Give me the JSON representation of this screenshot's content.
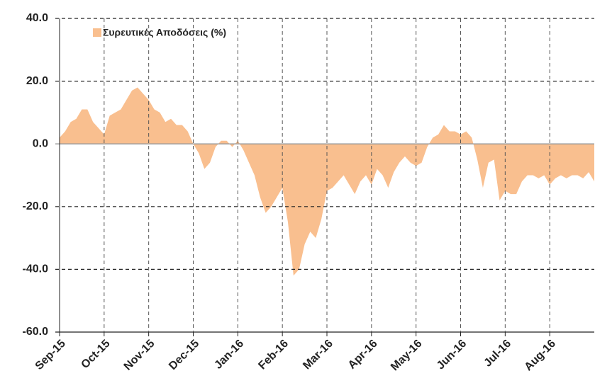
{
  "chart_data": {
    "type": "area",
    "series": [
      {
        "name": "Συρευτικές Αποδόσεις (%)",
        "color": "#f9bf8f",
        "values": [
          2,
          4,
          7,
          8,
          11,
          11,
          7,
          5,
          3,
          9,
          10,
          11,
          14,
          17,
          18,
          16,
          14,
          11,
          10,
          7,
          8,
          6,
          6,
          4,
          0,
          -3,
          -8,
          -6,
          -1,
          1,
          1,
          -1,
          1,
          -2,
          -6,
          -10,
          -17,
          -22,
          -20,
          -17,
          -14,
          -25,
          -42,
          -40,
          -32,
          -28,
          -30,
          -24,
          -15,
          -14,
          -12,
          -10,
          -13,
          -16,
          -12,
          -10,
          -13,
          -8,
          -10,
          -14,
          -9,
          -6,
          -4,
          -6,
          -7,
          -6,
          -1,
          2,
          3,
          6,
          4,
          4,
          3,
          4,
          2,
          -5,
          -14,
          -6,
          -5,
          -18,
          -15,
          -16,
          -16,
          -12,
          -10,
          -10,
          -11,
          -10,
          -13,
          -11,
          -10,
          -11,
          -10,
          -10,
          -11,
          -9,
          -12
        ]
      }
    ],
    "categories": [
      "Sep-15",
      null,
      null,
      null,
      null,
      null,
      null,
      null,
      "Oct-15",
      null,
      null,
      null,
      null,
      null,
      null,
      null,
      "Nov-15",
      null,
      null,
      null,
      null,
      null,
      null,
      null,
      "Dec-15",
      null,
      null,
      null,
      null,
      null,
      null,
      null,
      "Jan-16",
      null,
      null,
      null,
      null,
      null,
      null,
      null,
      "Feb-16",
      null,
      null,
      null,
      null,
      null,
      null,
      null,
      "Mar-16",
      null,
      null,
      null,
      null,
      null,
      null,
      null,
      "Apr-16",
      null,
      null,
      null,
      null,
      null,
      null,
      null,
      "May-16",
      null,
      null,
      null,
      null,
      null,
      null,
      null,
      "Jun-16",
      null,
      null,
      null,
      null,
      null,
      null,
      null,
      "Jul-16",
      null,
      null,
      null,
      null,
      null,
      null,
      null,
      "Aug-16",
      null,
      null,
      null,
      null,
      null,
      null,
      null,
      null
    ],
    "ylim": [
      -60,
      40
    ],
    "yticks": [
      {
        "value": -60,
        "label": "-60.0"
      },
      {
        "value": -40,
        "label": "-40.0"
      },
      {
        "value": -20,
        "label": "-20.0"
      },
      {
        "value": 0,
        "label": "0.0"
      },
      {
        "value": 20,
        "label": "20.0"
      },
      {
        "value": 40,
        "label": "40.0"
      }
    ],
    "grid": true,
    "legend": "top-left"
  }
}
